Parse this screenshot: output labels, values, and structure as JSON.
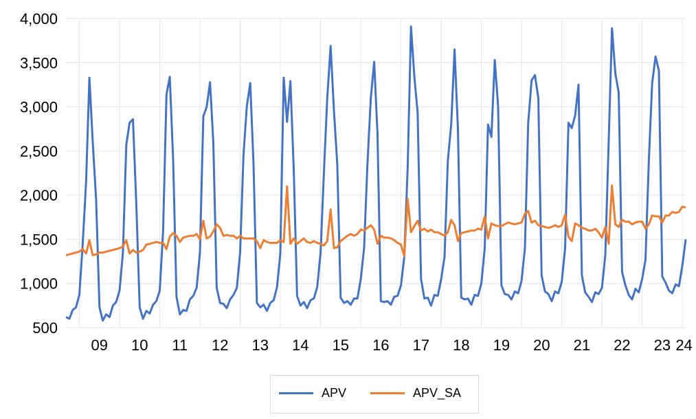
{
  "chart_data": {
    "type": "line",
    "title": "",
    "xlabel": "",
    "ylabel": "",
    "ylim": [
      500,
      4000
    ],
    "yticks": [
      "500",
      "1,000",
      "1,500",
      "2,000",
      "2,500",
      "3,000",
      "3,500",
      "4,000"
    ],
    "x_tick_labels": [
      "09",
      "10",
      "11",
      "12",
      "13",
      "14",
      "15",
      "16",
      "17",
      "18",
      "19",
      "20",
      "21",
      "22",
      "23",
      "24"
    ],
    "x_start": "2008-09",
    "grid": "vertical",
    "legend": "bottom",
    "series": [
      {
        "name": "APV",
        "color": "#4472C4",
        "values": [
          620,
          600,
          700,
          730,
          870,
          1450,
          2150,
          3330,
          2600,
          1950,
          730,
          580,
          650,
          620,
          750,
          790,
          920,
          1350,
          2570,
          2820,
          2860,
          1900,
          730,
          600,
          690,
          660,
          760,
          800,
          920,
          1600,
          3140,
          3340,
          2400,
          850,
          650,
          700,
          690,
          820,
          860,
          950,
          1350,
          2890,
          3000,
          3280,
          2600,
          950,
          780,
          770,
          720,
          820,
          870,
          950,
          1350,
          2460,
          3010,
          3270,
          2350,
          780,
          730,
          760,
          690,
          780,
          810,
          960,
          1340,
          3330,
          2830,
          3290,
          2300,
          860,
          750,
          790,
          720,
          810,
          830,
          960,
          1350,
          2250,
          3100,
          3690,
          2950,
          2350,
          840,
          780,
          800,
          760,
          830,
          830,
          1050,
          1400,
          2350,
          3100,
          3510,
          2700,
          800,
          790,
          800,
          760,
          850,
          860,
          980,
          1300,
          2300,
          3910,
          3340,
          2930,
          1050,
          830,
          840,
          750,
          870,
          860,
          1050,
          1300,
          2390,
          2800,
          3650,
          2750,
          840,
          820,
          830,
          760,
          870,
          860,
          1000,
          1400,
          2800,
          2660,
          3530,
          3000,
          980,
          880,
          870,
          820,
          910,
          890,
          1030,
          1400,
          2820,
          3300,
          3360,
          3100,
          1090,
          910,
          880,
          800,
          910,
          890,
          1020,
          1400,
          2820,
          2760,
          2900,
          3250,
          1090,
          900,
          850,
          790,
          900,
          880,
          950,
          1320,
          2600,
          3890,
          3380,
          3160,
          1130,
          980,
          870,
          820,
          940,
          900,
          1050,
          1270,
          2400,
          3270,
          3570,
          3410,
          1080,
          1010,
          920,
          890,
          990,
          970,
          1200,
          1500
        ]
      },
      {
        "name": "APV_SA",
        "color": "#ED7D31",
        "values": [
          1320,
          1330,
          1340,
          1350,
          1360,
          1390,
          1340,
          1490,
          1320,
          1330,
          1350,
          1350,
          1360,
          1370,
          1380,
          1390,
          1400,
          1420,
          1490,
          1340,
          1380,
          1350,
          1360,
          1380,
          1440,
          1450,
          1460,
          1470,
          1460,
          1460,
          1390,
          1530,
          1570,
          1540,
          1470,
          1520,
          1530,
          1540,
          1540,
          1560,
          1500,
          1710,
          1510,
          1530,
          1590,
          1670,
          1630,
          1540,
          1550,
          1540,
          1540,
          1510,
          1540,
          1510,
          1510,
          1510,
          1510,
          1480,
          1400,
          1490,
          1470,
          1460,
          1460,
          1460,
          1490,
          1470,
          2100,
          1450,
          1510,
          1450,
          1480,
          1510,
          1470,
          1460,
          1480,
          1460,
          1450,
          1430,
          1480,
          1840,
          1400,
          1410,
          1480,
          1510,
          1540,
          1560,
          1540,
          1560,
          1610,
          1600,
          1630,
          1660,
          1610,
          1450,
          1540,
          1520,
          1520,
          1510,
          1490,
          1460,
          1440,
          1310,
          1960,
          1580,
          1650,
          1710,
          1600,
          1620,
          1590,
          1610,
          1580,
          1580,
          1560,
          1540,
          1580,
          1720,
          1660,
          1480,
          1570,
          1580,
          1590,
          1600,
          1600,
          1620,
          1610,
          1760,
          1510,
          1680,
          1660,
          1650,
          1650,
          1670,
          1690,
          1680,
          1670,
          1680,
          1690,
          1790,
          1820,
          1690,
          1710,
          1660,
          1650,
          1640,
          1630,
          1640,
          1660,
          1640,
          1660,
          1780,
          1530,
          1480,
          1680,
          1660,
          1630,
          1620,
          1600,
          1600,
          1620,
          1580,
          1520,
          1640,
          1450,
          2110,
          1670,
          1640,
          1720,
          1700,
          1700,
          1670,
          1690,
          1700,
          1700,
          1620,
          1670,
          1770,
          1760,
          1760,
          1690,
          1770,
          1770,
          1810,
          1800,
          1810,
          1870,
          1860
        ]
      }
    ]
  }
}
